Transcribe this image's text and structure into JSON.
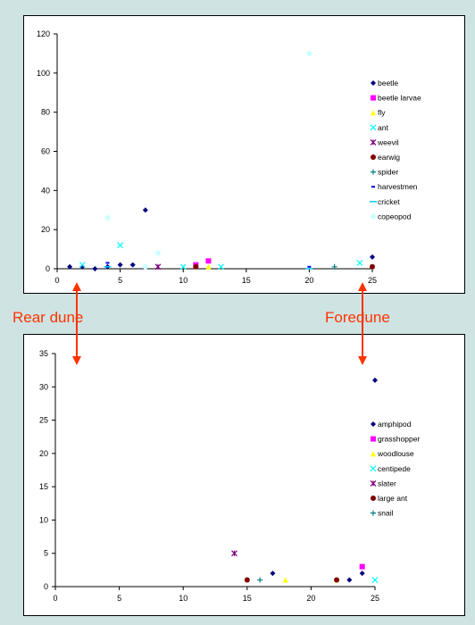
{
  "annotations": {
    "left": "Rear dune",
    "right": "Foredune"
  },
  "colors": {
    "arrow": "#ff3300",
    "background": "#cfe3e3"
  },
  "chart_data": [
    {
      "type": "scatter",
      "title": "",
      "xlabel": "",
      "ylabel": "",
      "xlim": [
        0,
        25
      ],
      "ylim": [
        0,
        120
      ],
      "xticks": [
        0,
        5,
        10,
        15,
        20,
        25
      ],
      "yticks": [
        0,
        20,
        40,
        60,
        80,
        100,
        120
      ],
      "legend_position": "right",
      "series": [
        {
          "name": "beetle",
          "color": "#000080",
          "marker": "diamond",
          "points": [
            [
              1,
              1
            ],
            [
              2,
              1
            ],
            [
              3,
              0
            ],
            [
              4,
              1
            ],
            [
              5,
              2
            ],
            [
              6,
              2
            ],
            [
              7,
              30
            ],
            [
              25,
              6
            ]
          ]
        },
        {
          "name": "beetle larvae",
          "color": "#ff00ff",
          "marker": "square",
          "points": [
            [
              11,
              2
            ],
            [
              12,
              4
            ]
          ]
        },
        {
          "name": "fly",
          "color": "#ffff00",
          "marker": "triangle",
          "points": [
            [
              12,
              1
            ]
          ]
        },
        {
          "name": "ant",
          "color": "#00ffff",
          "marker": "x",
          "points": [
            [
              2,
              2
            ],
            [
              5,
              12
            ],
            [
              10,
              1
            ],
            [
              13,
              1
            ],
            [
              24,
              3
            ]
          ]
        },
        {
          "name": "weevil",
          "color": "#800080",
          "marker": "star",
          "points": [
            [
              8,
              1
            ]
          ]
        },
        {
          "name": "earwig",
          "color": "#800000",
          "marker": "circle",
          "points": [
            [
              11,
              1
            ],
            [
              25,
              1
            ]
          ]
        },
        {
          "name": "spider",
          "color": "#008080",
          "marker": "plus",
          "points": [
            [
              22,
              1
            ]
          ]
        },
        {
          "name": "harvestmen",
          "color": "#0000ff",
          "marker": "dash",
          "points": [
            [
              4,
              3
            ],
            [
              20,
              1
            ]
          ]
        },
        {
          "name": "cricket",
          "color": "#00ccff",
          "marker": "hline",
          "points": [
            [
              4,
              1
            ],
            [
              20,
              0
            ]
          ]
        },
        {
          "name": "copeopod",
          "color": "#ccffff",
          "marker": "circle",
          "points": [
            [
              4,
              26
            ],
            [
              8,
              8
            ],
            [
              20,
              110
            ],
            [
              7,
              1
            ]
          ]
        }
      ]
    },
    {
      "type": "scatter",
      "title": "",
      "xlabel": "",
      "ylabel": "",
      "xlim": [
        0,
        25
      ],
      "ylim": [
        0,
        35
      ],
      "xticks": [
        0,
        5,
        10,
        15,
        20,
        25
      ],
      "yticks": [
        0,
        5,
        10,
        15,
        20,
        25,
        30,
        35
      ],
      "legend_position": "right",
      "series": [
        {
          "name": "amphipod",
          "color": "#000080",
          "marker": "diamond",
          "points": [
            [
              17,
              2
            ],
            [
              23,
              1
            ],
            [
              24,
              2
            ],
            [
              25,
              31
            ]
          ]
        },
        {
          "name": "grasshopper",
          "color": "#ff00ff",
          "marker": "square",
          "points": [
            [
              24,
              3
            ]
          ]
        },
        {
          "name": "woodlouse",
          "color": "#ffff00",
          "marker": "triangle",
          "points": [
            [
              18,
              1
            ],
            [
              22,
              1
            ]
          ]
        },
        {
          "name": "centipede",
          "color": "#00ffff",
          "marker": "x",
          "points": [
            [
              25,
              1
            ]
          ]
        },
        {
          "name": "slater",
          "color": "#800080",
          "marker": "star",
          "points": [
            [
              14,
              5
            ]
          ]
        },
        {
          "name": "large ant",
          "color": "#800000",
          "marker": "circle",
          "points": [
            [
              15,
              1
            ],
            [
              22,
              1
            ]
          ]
        },
        {
          "name": "snail",
          "color": "#008080",
          "marker": "plus",
          "points": [
            [
              16,
              1
            ]
          ]
        }
      ]
    }
  ]
}
